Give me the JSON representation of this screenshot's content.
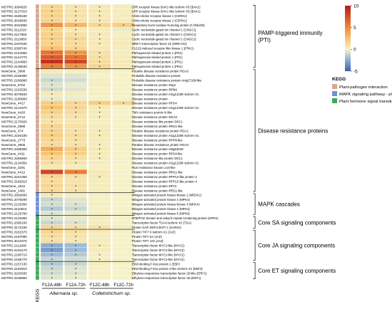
{
  "chart_data": {
    "type": "heatmap",
    "columns": [
      "F12A-48h",
      "F12A-72h",
      "F12C-48h",
      "F12C-72h"
    ],
    "column_groups": [
      {
        "label": "Alternaria sp.",
        "span": [
          0,
          1
        ]
      },
      {
        "label": "Colletotrichum sp.",
        "span": [
          2,
          3
        ]
      }
    ],
    "kegg_axis_label": "KEGG",
    "colorbar": {
      "min": -5,
      "max": 10,
      "ticks": [
        10,
        5,
        0,
        -5
      ],
      "colors": [
        "#3b60a8",
        "#9dbcd8",
        "#f5f2c8",
        "#f8c46f",
        "#e6732f",
        "#b21b1d"
      ]
    },
    "legend": {
      "title": "KEGG",
      "items": [
        {
          "label": "Plant-pathogen interaction",
          "color": "#d7a68f"
        },
        {
          "label": "MAPK signaling pathway - plant",
          "color": "#6f8fd9"
        },
        {
          "label": "Plant hormone signal transduction",
          "color": "#3faa5a"
        }
      ]
    },
    "rows": [
      {
        "id": "MSTRG.3094520",
        "desc": "LRR receptor kinase BAK1-like isoform X5 (BAK1)",
        "kegg": "pp",
        "values": [
          1.5,
          0.8,
          0.5,
          0.3
        ],
        "sig": [
          1,
          1,
          1,
          0
        ]
      },
      {
        "id": "MSTRG.3127010",
        "desc": "LRR receptor kinase BAK1-like isoform X5 (BAK1)",
        "kegg": "pp",
        "values": [
          1.8,
          0.9,
          0.6,
          0.4
        ],
        "sig": [
          1,
          1,
          1,
          0
        ]
      },
      {
        "id": "MSTRG.3188180",
        "desc": "Chitin elicitor receptor kinase 1 (CERK1)",
        "kegg": "pp",
        "values": [
          1.7,
          0.9,
          0.5,
          0.3
        ],
        "sig": [
          1,
          1,
          1,
          0
        ]
      },
      {
        "id": "MSTRG.3028830",
        "desc": "Chitin elicitor receptor kinase 1 (CERK1)",
        "kegg": "pp",
        "values": [
          1.6,
          0.8,
          0.6,
          0.3
        ],
        "sig": [
          1,
          1,
          1,
          0
        ]
      },
      {
        "id": "MSTRG.3034080",
        "desc": "Respiratory burst oxidase homolog protein D (RbohD)",
        "kegg": "pp",
        "values": [
          4.5,
          3.0,
          1.5,
          2.0
        ],
        "sig": [
          1,
          1,
          1,
          1
        ]
      },
      {
        "id": "MSTRG.3111310",
        "desc": "Cyclic nucleotide-gated ion channel 1 (CNGC1)",
        "kegg": "pp",
        "values": [
          1.5,
          0.5,
          0.3,
          -0.3
        ],
        "sig": [
          1,
          1,
          0,
          0
        ]
      },
      {
        "id": "MSTRG.2117950",
        "desc": "Cyclic nucleotide-gated ion channel 1 (CNGC1)",
        "kegg": "pp",
        "values": [
          1.8,
          1.0,
          0.4,
          0.2
        ],
        "sig": [
          1,
          1,
          1,
          0
        ]
      },
      {
        "id": "MSTRG.3119950",
        "desc": "Cyclic nucleotide-gated ion channel 1 (CNGC1)",
        "kegg": "pp",
        "values": [
          2.0,
          1.5,
          0.5,
          0.3
        ],
        "sig": [
          1,
          1,
          1,
          0
        ]
      },
      {
        "id": "MSTRG.2207840",
        "desc": "WRKY transcription factor 22 (WRKY22)",
        "kegg": "pp",
        "values": [
          1.8,
          1.2,
          0.5,
          0.5
        ],
        "sig": [
          1,
          1,
          1,
          0
        ]
      },
      {
        "id": "MSTRG.2095740",
        "desc": "FLG22-induced receptor-like kinase 1 (FRK1)",
        "kegg": "pp",
        "values": [
          2.5,
          1.5,
          0.5,
          0.3
        ],
        "sig": [
          1,
          1,
          0,
          0
        ]
      },
      {
        "id": "MSTRG.2144050",
        "desc": "Pathogenesis-related protein 1 (PR1)",
        "kegg": "pp",
        "values": [
          6.0,
          4.5,
          1.0,
          0.3
        ],
        "sig": [
          1,
          1,
          1,
          0
        ]
      },
      {
        "id": "MSTRG.2144770",
        "desc": "Pathogenesis-related protein 1 (PR1)",
        "kegg": "pp",
        "values": [
          7.0,
          6.0,
          1.0,
          0.4
        ],
        "sig": [
          1,
          1,
          1,
          0
        ]
      },
      {
        "id": "MSTRG.2144860",
        "desc": "Pathogenesis-related protein 1 (PR1)",
        "kegg": "pp",
        "values": [
          9.0,
          8.0,
          1.2,
          0.5
        ],
        "sig": [
          1,
          1,
          1,
          0
        ]
      },
      {
        "id": "MSTRG.2136630",
        "desc": "Pathogenesis-related protein 1 (PR1)",
        "kegg": "pp",
        "values": [
          5.5,
          4.5,
          1.5,
          0.5
        ],
        "sig": [
          1,
          1,
          1,
          0
        ]
      },
      {
        "id": "NewGene_3908",
        "desc": "Putative disease resistance protein RGA3",
        "kegg": "pp",
        "values": [
          0.5,
          0.2,
          0.3,
          0.0
        ],
        "sig": [
          0,
          0,
          0,
          0
        ]
      },
      {
        "id": "MSTRG.2189360",
        "desc": "Probable disease resistance protein",
        "kegg": "pp",
        "values": [
          -0.5,
          -0.5,
          0.0,
          0.0
        ],
        "sig": [
          0,
          0,
          0,
          0
        ]
      },
      {
        "id": "MSTRG.2180880",
        "desc": "Probable disease resistance protein At4g27190-like",
        "kegg": "pp",
        "values": [
          -1.0,
          -0.8,
          0.2,
          0.0
        ],
        "sig": [
          1,
          0,
          0,
          0
        ]
      },
      {
        "id": "NewGene_5752",
        "desc": "Disease resistance protein Rsp1",
        "kegg": "pp",
        "values": [
          -0.5,
          -0.3,
          0.2,
          0.0
        ],
        "sig": [
          1,
          0,
          0,
          0
        ]
      },
      {
        "id": "MSTRG.2152530",
        "desc": "Disease resistance protein RPM1",
        "kegg": "pp",
        "values": [
          -0.8,
          -0.5,
          0.1,
          0.0
        ],
        "sig": [
          1,
          0,
          0,
          0
        ]
      },
      {
        "id": "MSTRG.3075840",
        "desc": "Disease resistance protein At1g12280 isoform X1",
        "kegg": "pp",
        "values": [
          0.5,
          0.3,
          0.1,
          0.0
        ],
        "sig": [
          1,
          0,
          0,
          0
        ]
      },
      {
        "id": "MSTRG.2180900",
        "desc": "Disease resistance protein",
        "kegg": "pp",
        "values": [
          -0.3,
          -0.2,
          0.0,
          0.0
        ],
        "sig": [
          1,
          0,
          0,
          0
        ]
      },
      {
        "id": "NewGene_4417",
        "desc": "Disease resistance protein RPS4",
        "kegg": "pp",
        "values": [
          2.0,
          1.5,
          2.0,
          1.5
        ],
        "sig": [
          1,
          1,
          1,
          1
        ]
      },
      {
        "id": "MSTRG.2124370",
        "desc": "Disease resistance protein At1g12280 isoform X1",
        "kegg": "pp",
        "values": [
          2.5,
          1.5,
          0.5,
          0.0
        ],
        "sig": [
          1,
          1,
          1,
          0
        ]
      },
      {
        "id": "NewGene_4420",
        "desc": "TMV resistance protein N-like",
        "kegg": "pp",
        "values": [
          1.8,
          1.2,
          0.4,
          0.0
        ],
        "sig": [
          1,
          1,
          1,
          0
        ]
      },
      {
        "id": "NewGene_5712",
        "desc": "Disease resistance protein RGA3",
        "kegg": "pp",
        "values": [
          1.2,
          0.8,
          0.3,
          0.0
        ],
        "sig": [
          1,
          1,
          1,
          0
        ]
      },
      {
        "id": "MSTRG.2170920",
        "desc": "Disease resistance-like protein DSC1",
        "kegg": "pp",
        "values": [
          0.8,
          0.6,
          0.2,
          0.0
        ],
        "sig": [
          1,
          0,
          0,
          0
        ]
      },
      {
        "id": "NewGene_2998",
        "desc": "Disease resistance protein RRS1-like",
        "kegg": "pp",
        "values": [
          1.5,
          1.0,
          0.3,
          0.0
        ],
        "sig": [
          1,
          0,
          0,
          0
        ]
      },
      {
        "id": "NewGene_474",
        "desc": "Putative disease resistance protein RGA1",
        "kegg": "pp",
        "values": [
          1.8,
          1.0,
          0.5,
          0.0
        ],
        "sig": [
          1,
          1,
          1,
          0
        ]
      },
      {
        "id": "MSTRG.2226180",
        "desc": "Disease resistance protein At1g12280 isoform X1",
        "kegg": "pp",
        "values": [
          2.0,
          1.2,
          0.5,
          0.0
        ],
        "sig": [
          1,
          1,
          1,
          0
        ]
      },
      {
        "id": "NewGene_2773",
        "desc": "Disease resistance protein RPP8-like",
        "kegg": "pp",
        "values": [
          1.5,
          1.0,
          0.4,
          0.0
        ],
        "sig": [
          1,
          1,
          0,
          0
        ]
      },
      {
        "id": "NewGene_3905",
        "desc": "Putative disease resistance protein RGA3",
        "kegg": "pp",
        "values": [
          1.3,
          0.9,
          0.3,
          0.0
        ],
        "sig": [
          1,
          1,
          1,
          0
        ]
      },
      {
        "id": "MSTRG.2298360",
        "desc": "Disease resistance protein At5g63020",
        "kegg": "pp",
        "values": [
          3.5,
          2.0,
          0.5,
          0.0
        ],
        "sig": [
          1,
          1,
          1,
          0
        ]
      },
      {
        "id": "NewGene_4411",
        "desc": "Disease resistance protein RPS4-like",
        "kegg": "pp",
        "values": [
          2.5,
          1.8,
          0.4,
          0.0
        ],
        "sig": [
          1,
          1,
          1,
          0
        ]
      },
      {
        "id": "MSTRG.2286600",
        "desc": "Disease resistance-like protein DSC1",
        "kegg": "pp",
        "values": [
          1.5,
          1.0,
          0.3,
          0.0
        ],
        "sig": [
          1,
          1,
          1,
          0
        ]
      },
      {
        "id": "MSTRG.2134350",
        "desc": "Disease resistance protein At1g12280 isoform X1",
        "kegg": "pp",
        "values": [
          1.2,
          0.8,
          0.3,
          0.0
        ],
        "sig": [
          1,
          1,
          0,
          0
        ]
      },
      {
        "id": "NewGene_3291",
        "desc": "Rust resistance kinase Lr10-like",
        "kegg": "pp",
        "values": [
          0.5,
          0.3,
          0.1,
          0.0
        ],
        "sig": [
          0,
          0,
          0,
          0
        ]
      },
      {
        "id": "NewGene_4412",
        "desc": "Disease resistance protein RRS1-like",
        "kegg": "pp",
        "values": [
          8.0,
          5.5,
          0.5,
          0.0
        ],
        "sig": [
          1,
          1,
          0,
          0
        ]
      },
      {
        "id": "MSTRG.3241060",
        "desc": "Disease resistance protein RPP13-like protein 4",
        "kegg": "pp",
        "values": [
          1.5,
          1.0,
          0.5,
          0.0
        ],
        "sig": [
          1,
          1,
          1,
          0
        ]
      },
      {
        "id": "MSTRG.3169310",
        "desc": "Disease resistance protein RPP13-like protein 4",
        "kegg": "pp",
        "values": [
          1.2,
          0.8,
          0.3,
          0.0
        ],
        "sig": [
          1,
          0,
          0,
          0
        ]
      },
      {
        "id": "NewGene_1534",
        "desc": "Disease resistance protein RPV1",
        "kegg": "pp",
        "values": [
          1.5,
          1.0,
          0.3,
          0.0
        ],
        "sig": [
          1,
          1,
          0,
          0
        ]
      },
      {
        "id": "NewGene_1481",
        "desc": "Disease resistance protein RRS1-like",
        "kegg": "pp",
        "values": [
          1.3,
          0.8,
          0.3,
          0.0
        ],
        "sig": [
          1,
          1,
          0,
          0
        ]
      },
      {
        "id": "MSTRG.2692660",
        "desc": "Mitogen-activated protein kinase kinase 1 (MEKK1)",
        "kegg": "mapk",
        "values": [
          0.5,
          0.3,
          0.1,
          0.0
        ],
        "sig": [
          1,
          0,
          0,
          0
        ]
      },
      {
        "id": "MSTRG.2079290",
        "desc": "Mitogen-activated protein kinase 4 (MPK4)",
        "kegg": "mapk",
        "values": [
          -1.0,
          -0.5,
          0.1,
          0.0
        ],
        "sig": [
          1,
          0,
          0,
          0
        ]
      },
      {
        "id": "MSTRG.2125350",
        "desc": "Mitogen-activated protein kinase kinase 4 (MKK4)",
        "kegg": "mapk",
        "values": [
          -0.8,
          -0.6,
          0.2,
          0.0
        ],
        "sig": [
          1,
          1,
          0,
          0
        ]
      },
      {
        "id": "MSTRG.3110510",
        "desc": "Mitogen-activated protein kinase 4 (MPK4)",
        "kegg": "mapk",
        "values": [
          -1.5,
          -1.0,
          0.1,
          0.0
        ],
        "sig": [
          1,
          1,
          0,
          0
        ]
      },
      {
        "id": "MSTRG.2125760",
        "desc": "Mitogen-activated protein kinase 6 (MPK6)",
        "kegg": "mapk",
        "values": [
          -0.5,
          -0.3,
          0.1,
          0.0
        ],
        "sig": [
          1,
          0,
          0,
          0
        ]
      },
      {
        "id": "MSTRG.2131960",
        "desc": "BTB/POZ domain and ankyrin repeat-containing protein (NPR1)",
        "kegg": "ph",
        "values": [
          -0.5,
          -0.3,
          0.2,
          0.0
        ],
        "sig": [
          1,
          0,
          0,
          0
        ]
      },
      {
        "id": "MSTRG.2095160",
        "desc": "Transcription factor TGA4 isoform X2 (TGA)",
        "kegg": "ph",
        "values": [
          -1.0,
          -0.6,
          0.3,
          0.0
        ],
        "sig": [
          1,
          1,
          0,
          0
        ]
      },
      {
        "id": "MSTRG.3172160",
        "desc": "Protein SAR DEFICIENT 1 (SARD1)",
        "kegg": "ph",
        "values": [
          1.5,
          1.0,
          0.8,
          0.2
        ],
        "sig": [
          1,
          1,
          1,
          0
        ]
      },
      {
        "id": "MSTRG.3161570",
        "desc": "Protein TIFY 9 isoform X1 (JAZ)",
        "kegg": "ph",
        "values": [
          1.5,
          1.0,
          0.5,
          0.0
        ],
        "sig": [
          1,
          1,
          0,
          0
        ]
      },
      {
        "id": "MSTRG.2187080",
        "desc": "Protein TIFY 5A (JAZ)",
        "kegg": "ph",
        "values": [
          1.2,
          0.8,
          0.3,
          0.0
        ],
        "sig": [
          1,
          1,
          0,
          0
        ]
      },
      {
        "id": "MSTRG.3012070",
        "desc": "Protein TIFY 10A (JAZ)",
        "kegg": "ph",
        "values": [
          1.0,
          0.6,
          0.3,
          0.0
        ],
        "sig": [
          1,
          1,
          0,
          0
        ]
      },
      {
        "id": "MSTRG.2111900",
        "desc": "Transcription factor MYC2-like (MYC2)",
        "kegg": "ph",
        "values": [
          -2.5,
          -2.0,
          0.5,
          0.0
        ],
        "sig": [
          1,
          1,
          1,
          0
        ]
      },
      {
        "id": "MSTRG.2233170",
        "desc": "Transcription factor MYC2-like (MYC2)",
        "kegg": "ph",
        "values": [
          -3.0,
          -2.0,
          0.3,
          0.0
        ],
        "sig": [
          1,
          1,
          0,
          0
        ]
      },
      {
        "id": "MSTRG.2180710",
        "desc": "Transcription factor MYC2-like (MYC2)",
        "kegg": "ph",
        "values": [
          -2.0,
          -1.5,
          0.2,
          0.0
        ],
        "sig": [
          1,
          1,
          1,
          0
        ]
      },
      {
        "id": "MSTRG.2186770",
        "desc": "Transcription factor MYC2-like (MYC2)",
        "kegg": "ph",
        "values": [
          -1.0,
          -0.8,
          0.1,
          0.0
        ],
        "sig": [
          1,
          0,
          1,
          0
        ]
      },
      {
        "id": "MSTRG.2157130",
        "desc": "EIN3-binding F-box protein 1 (EBF)",
        "kegg": "ph",
        "values": [
          -1.5,
          -1.0,
          0.2,
          0.0
        ],
        "sig": [
          1,
          1,
          0,
          0
        ]
      },
      {
        "id": "MSTRG.3182910",
        "desc": "EIN3-binding F-box protein 2-like isoform X1 (EBF2)",
        "kegg": "ph",
        "values": [
          -1.0,
          -0.5,
          0.1,
          0.0
        ],
        "sig": [
          1,
          1,
          0,
          0
        ]
      },
      {
        "id": "MSTRG.3220030",
        "desc": "Ethylene-responsive transcription factor 1B-like (ERF1)",
        "kegg": "ph",
        "values": [
          -0.8,
          -0.5,
          0.1,
          0.0
        ],
        "sig": [
          1,
          1,
          0,
          0
        ]
      },
      {
        "id": "MSTRG.3239950",
        "desc": "Ethylene-responsive transcription factor 1B (ERF1)",
        "kegg": "ph",
        "values": [
          -0.5,
          -0.3,
          0.1,
          0.0
        ],
        "sig": [
          1,
          1,
          0,
          0
        ]
      }
    ],
    "groups": [
      {
        "label": "PAMP-triggered immunity\n(PTI)",
        "first": 0,
        "last": 13
      },
      {
        "label": "Disease resistance proteins",
        "first": 14,
        "last": 40
      },
      {
        "label": "MAPK cascades",
        "first": 41,
        "last": 45
      },
      {
        "label": "Core SA signaling components",
        "first": 46,
        "last": 48
      },
      {
        "label": "Core JA signaling components",
        "first": 49,
        "last": 55
      },
      {
        "label": "Core ET signaling components",
        "first": 56,
        "last": 59
      }
    ],
    "separators_after": [
      13,
      40,
      45,
      48,
      55
    ]
  }
}
